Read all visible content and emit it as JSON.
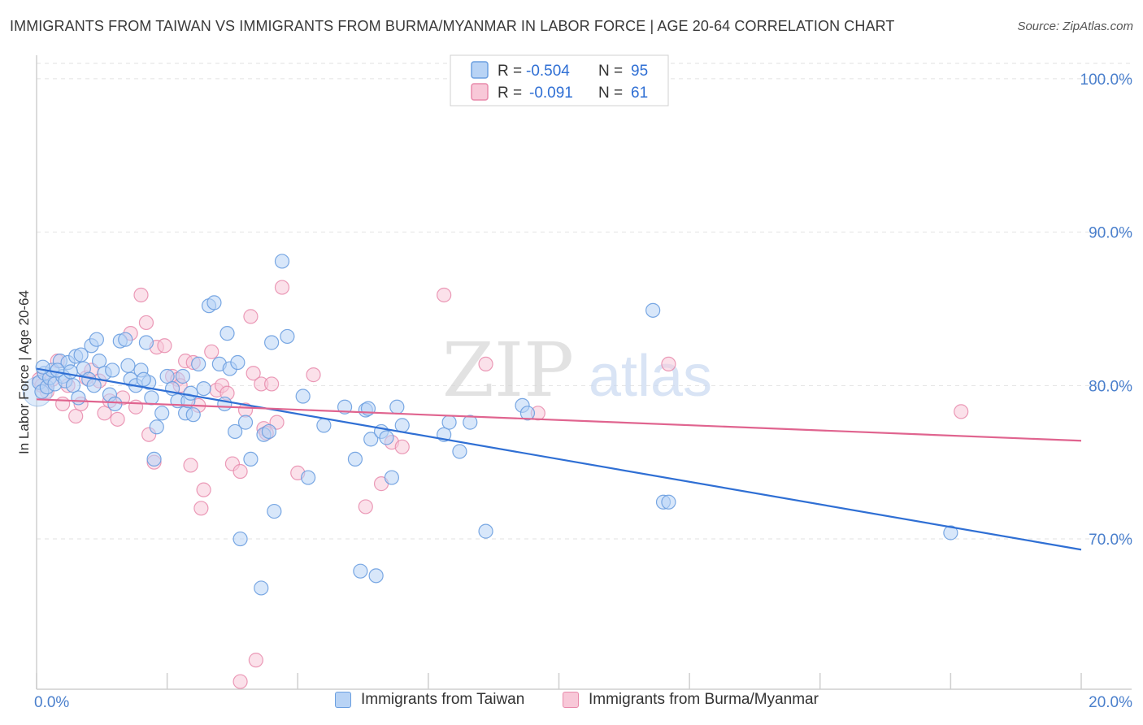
{
  "title": "IMMIGRANTS FROM TAIWAN VS IMMIGRANTS FROM BURMA/MYANMAR IN LABOR FORCE | AGE 20-64 CORRELATION CHART",
  "source": "Source: ZipAtlas.com",
  "watermark": {
    "zip": "ZIP",
    "atlas": "atlas"
  },
  "legend_top": [
    {
      "r_label": "R =",
      "r_value": "-0.504",
      "n_label": "N =",
      "n_value": "95",
      "color": "#6b9fe0"
    },
    {
      "r_label": "R =",
      "r_value": "-0.091",
      "n_label": "N =",
      "n_value": "61",
      "color": "#e88aab"
    }
  ],
  "colors": {
    "blue_fill": "#b8d3f5",
    "blue_stroke": "#6b9fe0",
    "blue_line": "#2f6fd4",
    "pink_fill": "#f8c8d8",
    "pink_stroke": "#e88aab",
    "pink_line": "#e0648f",
    "tick_label": "#4a7fcc"
  },
  "chart_data": {
    "type": "scatter",
    "title": "IMMIGRANTS FROM TAIWAN VS IMMIGRANTS FROM BURMA/MYANMAR IN LABOR FORCE | AGE 20-64 CORRELATION CHART",
    "xlabel": "",
    "ylabel": "In Labor Force | Age 20-64",
    "xlim": [
      0,
      20
    ],
    "ylim": [
      60.2,
      101
    ],
    "x_tick_labels": [
      "0.0%",
      "20.0%"
    ],
    "y_ticks": [
      70,
      80,
      90,
      100
    ],
    "y_tick_labels": [
      "70.0%",
      "80.0%",
      "90.0%",
      "100.0%"
    ],
    "series": [
      {
        "name": "Immigrants from Taiwan",
        "trend": {
          "x": [
            0,
            20
          ],
          "y": [
            81.1,
            69.3
          ]
        },
        "points": [
          [
            0.05,
            80.2
          ],
          [
            0.1,
            79.6
          ],
          [
            0.15,
            80.8
          ],
          [
            0.2,
            79.9
          ],
          [
            0.25,
            80.5
          ],
          [
            0.3,
            81.0
          ],
          [
            0.35,
            80.1
          ],
          [
            0.45,
            81.6
          ],
          [
            0.5,
            80.6
          ],
          [
            0.55,
            80.3
          ],
          [
            0.6,
            81.5
          ],
          [
            0.7,
            80.0
          ],
          [
            0.75,
            81.9
          ],
          [
            0.8,
            79.2
          ],
          [
            0.85,
            82.0
          ],
          [
            0.9,
            81.1
          ],
          [
            1.0,
            80.4
          ],
          [
            1.05,
            82.6
          ],
          [
            1.1,
            80.0
          ],
          [
            1.15,
            83.0
          ],
          [
            1.2,
            81.6
          ],
          [
            1.3,
            80.8
          ],
          [
            1.4,
            79.4
          ],
          [
            1.5,
            78.8
          ],
          [
            1.6,
            82.9
          ],
          [
            1.7,
            83.0
          ],
          [
            1.75,
            81.3
          ],
          [
            1.8,
            80.4
          ],
          [
            1.9,
            80.0
          ],
          [
            2.0,
            81.0
          ],
          [
            2.1,
            82.8
          ],
          [
            2.15,
            80.2
          ],
          [
            2.2,
            79.2
          ],
          [
            2.25,
            75.2
          ],
          [
            2.3,
            77.3
          ],
          [
            2.4,
            78.2
          ],
          [
            2.5,
            80.6
          ],
          [
            2.6,
            79.8
          ],
          [
            2.7,
            79.0
          ],
          [
            2.8,
            80.6
          ],
          [
            2.85,
            78.2
          ],
          [
            2.9,
            79.0
          ],
          [
            2.95,
            79.5
          ],
          [
            3.0,
            78.1
          ],
          [
            3.1,
            81.4
          ],
          [
            3.2,
            79.8
          ],
          [
            3.3,
            85.2
          ],
          [
            3.4,
            85.4
          ],
          [
            3.5,
            81.4
          ],
          [
            3.6,
            78.8
          ],
          [
            3.65,
            83.4
          ],
          [
            3.7,
            81.1
          ],
          [
            3.8,
            77.0
          ],
          [
            3.85,
            81.5
          ],
          [
            3.9,
            70.0
          ],
          [
            4.0,
            77.6
          ],
          [
            4.1,
            75.2
          ],
          [
            4.3,
            66.8
          ],
          [
            4.35,
            76.8
          ],
          [
            4.45,
            77.0
          ],
          [
            4.5,
            82.8
          ],
          [
            4.55,
            71.8
          ],
          [
            4.7,
            88.1
          ],
          [
            4.8,
            83.2
          ],
          [
            5.1,
            79.3
          ],
          [
            5.2,
            74.0
          ],
          [
            5.5,
            77.4
          ],
          [
            5.9,
            78.6
          ],
          [
            6.1,
            75.2
          ],
          [
            6.3,
            78.4
          ],
          [
            6.35,
            78.5
          ],
          [
            6.2,
            67.9
          ],
          [
            6.4,
            76.5
          ],
          [
            6.5,
            67.6
          ],
          [
            6.6,
            77.0
          ],
          [
            6.7,
            76.6
          ],
          [
            6.8,
            74.0
          ],
          [
            6.9,
            78.6
          ],
          [
            7.0,
            77.4
          ],
          [
            7.8,
            76.8
          ],
          [
            7.9,
            77.6
          ],
          [
            8.1,
            75.7
          ],
          [
            8.3,
            77.6
          ],
          [
            8.6,
            70.5
          ],
          [
            9.3,
            78.7
          ],
          [
            9.4,
            78.2
          ],
          [
            11.8,
            84.9
          ],
          [
            12.0,
            72.4
          ],
          [
            12.1,
            72.4
          ],
          [
            17.5,
            70.4
          ],
          [
            0.12,
            81.2
          ],
          [
            0.4,
            81.0
          ],
          [
            0.65,
            80.9
          ],
          [
            2.05,
            80.4
          ],
          [
            1.45,
            81.0
          ]
        ]
      },
      {
        "name": "Immigrants from Burma/Myanmar",
        "trend": {
          "x": [
            0,
            20
          ],
          "y": [
            79.1,
            76.4
          ]
        },
        "points": [
          [
            0.05,
            80.4
          ],
          [
            0.1,
            80.0
          ],
          [
            0.2,
            79.6
          ],
          [
            0.3,
            80.4
          ],
          [
            0.4,
            81.6
          ],
          [
            0.5,
            78.8
          ],
          [
            0.6,
            80.0
          ],
          [
            0.75,
            78.0
          ],
          [
            0.85,
            78.8
          ],
          [
            0.95,
            80.5
          ],
          [
            1.05,
            81.0
          ],
          [
            1.2,
            80.3
          ],
          [
            1.3,
            78.2
          ],
          [
            1.4,
            79.0
          ],
          [
            1.55,
            77.8
          ],
          [
            1.65,
            79.2
          ],
          [
            1.8,
            83.4
          ],
          [
            1.9,
            78.6
          ],
          [
            2.0,
            85.9
          ],
          [
            2.1,
            84.1
          ],
          [
            2.15,
            76.8
          ],
          [
            2.25,
            75.0
          ],
          [
            2.3,
            82.5
          ],
          [
            2.45,
            82.6
          ],
          [
            2.6,
            80.6
          ],
          [
            2.7,
            80.4
          ],
          [
            2.75,
            80.0
          ],
          [
            2.85,
            81.6
          ],
          [
            2.95,
            74.8
          ],
          [
            3.0,
            81.5
          ],
          [
            3.1,
            78.7
          ],
          [
            3.15,
            72.0
          ],
          [
            3.2,
            73.2
          ],
          [
            3.35,
            82.2
          ],
          [
            3.45,
            79.7
          ],
          [
            3.55,
            80.0
          ],
          [
            3.65,
            79.5
          ],
          [
            3.75,
            74.9
          ],
          [
            3.9,
            74.4
          ],
          [
            4.0,
            78.4
          ],
          [
            4.1,
            84.5
          ],
          [
            4.15,
            80.8
          ],
          [
            4.2,
            62.1
          ],
          [
            4.3,
            80.1
          ],
          [
            4.35,
            77.2
          ],
          [
            4.4,
            76.9
          ],
          [
            4.5,
            80.1
          ],
          [
            4.6,
            77.6
          ],
          [
            4.7,
            86.4
          ],
          [
            5.0,
            74.3
          ],
          [
            5.3,
            80.7
          ],
          [
            6.3,
            72.1
          ],
          [
            6.6,
            73.6
          ],
          [
            6.8,
            76.3
          ],
          [
            7.0,
            76.0
          ],
          [
            7.8,
            85.9
          ],
          [
            8.6,
            81.4
          ],
          [
            9.6,
            78.2
          ],
          [
            12.1,
            81.4
          ],
          [
            17.7,
            78.3
          ],
          [
            3.9,
            60.7
          ]
        ]
      }
    ]
  },
  "legend_bottom": [
    {
      "label": "Immigrants from Taiwan"
    },
    {
      "label": "Immigrants from Burma/Myanmar"
    }
  ]
}
